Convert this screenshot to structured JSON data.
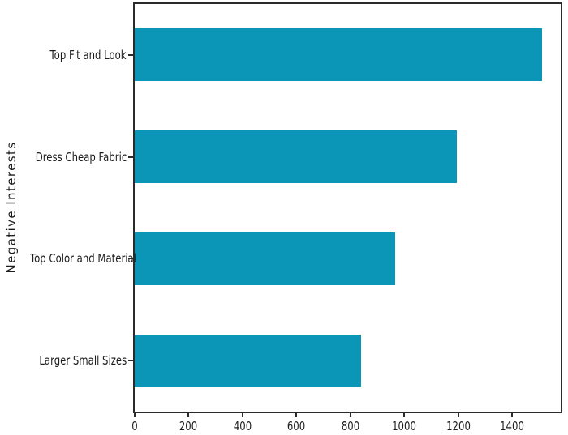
{
  "figure": {
    "background_color": "#ffffff",
    "spine_color": "#2b2b2b",
    "text_color": "#1c1c1c"
  },
  "chart_data": {
    "type": "bar",
    "orientation": "horizontal",
    "title": "",
    "xlabel": "",
    "ylabel": "Negative Interests",
    "categories": [
      "Top Fit and Look",
      "Dress Cheap Fabric",
      "Top Color and Material",
      "Larger Small Sizes"
    ],
    "values": [
      1510,
      1195,
      965,
      840
    ],
    "xticks": [
      0,
      200,
      400,
      600,
      800,
      1000,
      1200,
      1400
    ],
    "xlim": [
      0,
      1580
    ],
    "grid": false,
    "legend": null,
    "bar_color": "#0b96b8"
  }
}
